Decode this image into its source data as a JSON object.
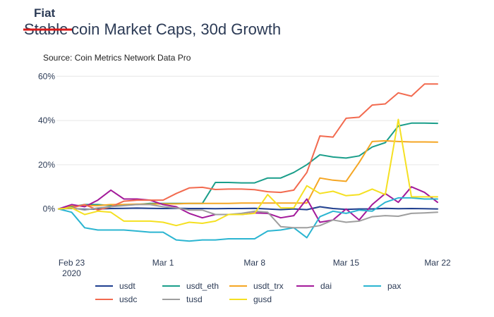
{
  "chart_data": {
    "type": "line",
    "title_prefix": "Fiat",
    "title_struck": "Stable",
    "title_rest": "coin Market Caps, 30d Growth",
    "subtitle": "Source: Coin Metrics Network Data Pro",
    "xlabel": "",
    "ylabel": "",
    "ylim": [
      -17,
      62
    ],
    "yticks": [
      0,
      20,
      40,
      60
    ],
    "ytick_labels": [
      "0%",
      "20%",
      "40%",
      "60%"
    ],
    "y_unit": "%",
    "x": [
      "2020-02-22",
      "2020-02-23",
      "2020-02-24",
      "2020-02-25",
      "2020-02-26",
      "2020-02-27",
      "2020-02-28",
      "2020-02-29",
      "2020-03-01",
      "2020-03-02",
      "2020-03-03",
      "2020-03-04",
      "2020-03-05",
      "2020-03-06",
      "2020-03-07",
      "2020-03-08",
      "2020-03-09",
      "2020-03-10",
      "2020-03-11",
      "2020-03-12",
      "2020-03-13",
      "2020-03-14",
      "2020-03-15",
      "2020-03-16",
      "2020-03-17",
      "2020-03-18",
      "2020-03-19",
      "2020-03-20",
      "2020-03-21",
      "2020-03-22"
    ],
    "xticks": [
      "2020-02-23",
      "2020-03-01",
      "2020-03-08",
      "2020-03-15",
      "2020-03-22"
    ],
    "xtick_labels": [
      "Feb 23",
      "Mar 1",
      "Mar 8",
      "Mar 15",
      "Mar 22"
    ],
    "xtick_year": "2020",
    "grid": "horizontal",
    "legend_position": "bottom",
    "series": [
      {
        "name": "usdt",
        "color": "#1f3f8f",
        "values": [
          0,
          0.3,
          -0.2,
          0,
          0.2,
          0.3,
          0.4,
          0.3,
          0.2,
          0.3,
          0.2,
          0.2,
          0.1,
          0.2,
          0.2,
          0.3,
          0,
          -0.3,
          0,
          -0.3,
          1,
          0.2,
          -0.2,
          0,
          0,
          0.3,
          0.1,
          0.2,
          0.1,
          0
        ]
      },
      {
        "name": "usdt_eth",
        "color": "#1a9e8a",
        "values": [
          0,
          1,
          2,
          2,
          1.5,
          2,
          2,
          2.5,
          2.5,
          2.5,
          2.5,
          2.5,
          12,
          12,
          11.8,
          11.8,
          14,
          14,
          16.5,
          20,
          24.5,
          23.5,
          23,
          24,
          28,
          30,
          37.5,
          38.8,
          38.8,
          38.7
        ]
      },
      {
        "name": "usdt_trx",
        "color": "#f5a623",
        "values": [
          0,
          1.5,
          1.5,
          1.5,
          2,
          2,
          2.2,
          2.2,
          2.3,
          2.3,
          2.5,
          2.5,
          2.5,
          2.5,
          2.7,
          2.7,
          2.7,
          2.7,
          2.7,
          2.7,
          14,
          13,
          12.5,
          21,
          30.5,
          30.8,
          30.5,
          30.3,
          30.3,
          30.2
        ]
      },
      {
        "name": "dai",
        "color": "#a31a9a",
        "values": [
          0,
          2,
          1,
          4,
          8.5,
          4.5,
          4.5,
          4,
          2,
          1,
          -2,
          -4,
          -2.5,
          -2.5,
          -2.5,
          -1.8,
          -2,
          -4,
          -3,
          4.5,
          -6,
          -5,
          0,
          -5,
          2,
          7,
          3,
          10,
          7.5,
          3
        ]
      },
      {
        "name": "pax",
        "color": "#2bb5d1",
        "values": [
          0,
          -1.5,
          -8.5,
          -9.5,
          -9.5,
          -9.5,
          -10,
          -10.5,
          -10.5,
          -14,
          -14.5,
          -14,
          -14,
          -13.5,
          -13.5,
          -13.5,
          -10,
          -9.5,
          -8.5,
          -13,
          -3.5,
          -1,
          -2,
          -0.5,
          -1,
          3,
          5,
          5,
          4.5,
          4.5
        ]
      },
      {
        "name": "usdc",
        "color": "#f26a4f",
        "values": [
          0,
          0.5,
          2,
          -0.5,
          1,
          3.5,
          4,
          4,
          4,
          7,
          9.5,
          9.8,
          8.8,
          9,
          9,
          8.7,
          7.8,
          7.5,
          8.5,
          16.5,
          33,
          32.5,
          41,
          41.5,
          47,
          47.5,
          52.5,
          51,
          56.5,
          56.5
        ]
      },
      {
        "name": "tusd",
        "color": "#9e9e9e",
        "values": [
          0,
          0.5,
          -0.5,
          0.5,
          1,
          1.5,
          2,
          2,
          1,
          0.5,
          -0.5,
          -0.5,
          -2.5,
          -2.5,
          -2,
          -1,
          -1.5,
          -8,
          -8.5,
          -8.5,
          -7.5,
          -5,
          -6,
          -5.5,
          -3.5,
          -3,
          -3.3,
          -2,
          -1.8,
          -1.5
        ]
      },
      {
        "name": "gusd",
        "color": "#f5e021",
        "values": [
          0,
          0.5,
          -2.5,
          -1,
          -1.5,
          -5.5,
          -5.5,
          -5.5,
          -6,
          -7.5,
          -6,
          -6.5,
          -5.5,
          -2.5,
          -2.5,
          -2,
          6.5,
          0.5,
          0.5,
          10.5,
          7,
          8,
          6,
          6.5,
          9,
          6.5,
          40.5,
          5.5,
          5.5,
          5.5
        ]
      }
    ]
  }
}
